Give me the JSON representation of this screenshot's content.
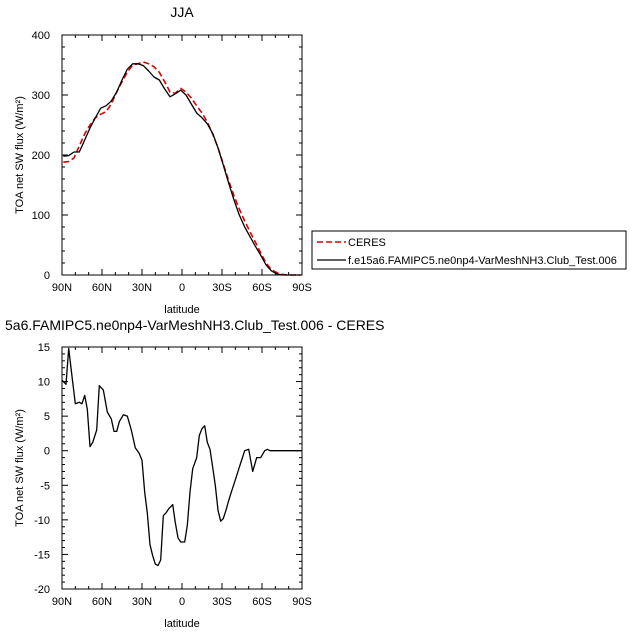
{
  "chart_data": [
    {
      "type": "line",
      "title": "JJA",
      "xlabel": "latitude",
      "ylabel": "TOA net SW flux (W/m²)",
      "xlim": [
        90,
        -90
      ],
      "ylim": [
        0,
        400
      ],
      "x_ticks": [
        90,
        60,
        30,
        0,
        -30,
        -60,
        -90
      ],
      "x_tick_labels": [
        "90N",
        "60N",
        "30N",
        "0",
        "30S",
        "60S",
        "90S"
      ],
      "y_ticks": [
        0,
        100,
        200,
        300,
        400
      ],
      "y_tick_labels": [
        "0",
        "100",
        "200",
        "300",
        "400"
      ],
      "grid": false,
      "legend_position": "right",
      "series": [
        {
          "name": "CERES",
          "color": "#e00000",
          "style": "dashed",
          "x": [
            89,
            85,
            81,
            77,
            73,
            69,
            65,
            61,
            57,
            53,
            49,
            45,
            41,
            37,
            33,
            29,
            25,
            21,
            17,
            13,
            9,
            5,
            1,
            -3,
            -7,
            -11,
            -15,
            -19,
            -23,
            -27,
            -31,
            -35,
            -39,
            -43,
            -47,
            -51,
            -55,
            -59,
            -63,
            -67,
            -71,
            -75,
            -79,
            -83,
            -87,
            -89
          ],
          "y": [
            188,
            189,
            195,
            215,
            235,
            250,
            262,
            268,
            272,
            285,
            305,
            322,
            338,
            350,
            352,
            355,
            352,
            347,
            338,
            322,
            305,
            303,
            311,
            305,
            295,
            282,
            270,
            255,
            235,
            212,
            185,
            157,
            132,
            110,
            90,
            72,
            55,
            37,
            20,
            9,
            4,
            1,
            0,
            0,
            0,
            0
          ]
        },
        {
          "name": "f.e15a6.FAMIPC5.ne0np4-VarMeshNH3.Club_Test.006",
          "color": "#000000",
          "style": "solid",
          "x": [
            89,
            85,
            81,
            77,
            73,
            69,
            65,
            61,
            57,
            53,
            49,
            45,
            41,
            37,
            33,
            29,
            25,
            21,
            17,
            13,
            9,
            5,
            1,
            -3,
            -7,
            -11,
            -15,
            -19,
            -23,
            -27,
            -31,
            -35,
            -39,
            -43,
            -47,
            -51,
            -55,
            -59,
            -63,
            -67,
            -71,
            -75,
            -79,
            -83,
            -87,
            -89
          ],
          "y": [
            198,
            199,
            205,
            205,
            225,
            245,
            262,
            278,
            282,
            290,
            305,
            325,
            343,
            352,
            352,
            349,
            340,
            330,
            325,
            310,
            297,
            302,
            308,
            300,
            285,
            270,
            262,
            252,
            236,
            212,
            183,
            153,
            125,
            100,
            80,
            64,
            48,
            33,
            17,
            7,
            2,
            0,
            0,
            0,
            0,
            0
          ]
        }
      ]
    },
    {
      "type": "line",
      "title": "5a6.FAMIPC5.ne0np4-VarMeshNH3.Club_Test.006 - CERES",
      "xlabel": "latitude",
      "ylabel": "TOA net SW flux (W/m²)",
      "xlim": [
        90,
        -90
      ],
      "ylim": [
        -20,
        15
      ],
      "x_ticks": [
        90,
        60,
        30,
        0,
        -30,
        -60,
        -90
      ],
      "x_tick_labels": [
        "90N",
        "60N",
        "30N",
        "0",
        "30S",
        "60S",
        "90S"
      ],
      "y_ticks": [
        -20,
        -15,
        -10,
        -5,
        0,
        5,
        10,
        15
      ],
      "y_tick_labels": [
        "-20",
        "-15",
        "-10",
        "-5",
        "0",
        "5",
        "10",
        "15"
      ],
      "grid": false,
      "series": [
        {
          "color": "#000000",
          "style": "solid",
          "x": [
            90,
            87,
            85,
            83,
            80,
            77,
            75,
            73,
            71,
            69,
            67,
            64,
            62,
            59,
            56,
            53,
            51,
            49,
            47,
            44,
            41,
            38,
            35,
            32,
            30,
            28,
            26,
            24,
            22,
            20,
            18,
            16,
            14,
            12,
            10,
            7,
            5,
            3,
            1,
            -2,
            -4,
            -6,
            -8,
            -11,
            -13,
            -15,
            -17,
            -19,
            -21,
            -23,
            -25,
            -27,
            -29,
            -31,
            -33,
            -35,
            -37,
            -39,
            -41,
            -43,
            -45,
            -47,
            -50,
            -53,
            -56,
            -59,
            -62,
            -64,
            -66,
            -68,
            -70,
            -72,
            -74,
            -77,
            -80,
            -83,
            -86,
            -90
          ],
          "y": [
            10.2,
            9.6,
            14.8,
            11.6,
            6.8,
            7.0,
            6.8,
            8.0,
            6.0,
            0.6,
            1.2,
            3.0,
            9.4,
            8.8,
            5.6,
            4.6,
            2.8,
            2.8,
            4.2,
            5.2,
            5.0,
            3.0,
            0.4,
            -0.4,
            -1.4,
            -6.0,
            -9.0,
            -13.6,
            -15.2,
            -16.4,
            -16.6,
            -15.8,
            -9.4,
            -9.0,
            -8.4,
            -7.8,
            -10.4,
            -12.6,
            -13.2,
            -13.2,
            -10.8,
            -6.0,
            -2.6,
            -1.0,
            2.2,
            3.2,
            3.6,
            1.2,
            0.2,
            -2.4,
            -5.0,
            -8.6,
            -10.2,
            -9.8,
            -8.6,
            -7.2,
            -6.0,
            -4.8,
            -3.6,
            -2.4,
            -1.2,
            0.0,
            0.2,
            -3.0,
            -1.0,
            -1.0,
            0.0,
            0.2,
            0.0,
            0.0,
            0.0,
            0.0,
            0.0,
            0.0,
            0.0,
            0.0,
            0.0,
            0.0
          ]
        }
      ]
    }
  ]
}
